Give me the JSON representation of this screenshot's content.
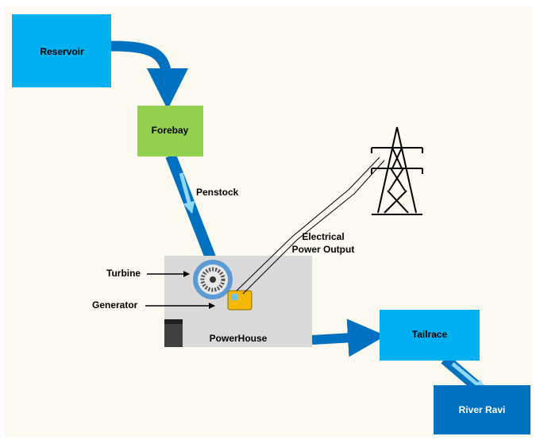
{
  "nodes": [
    {
      "label": "Reservoir"
    },
    {
      "label": "Forebay"
    },
    {
      "label": "PowerHouse"
    },
    {
      "label": "Tailrace"
    },
    {
      "label": "River Ravi"
    }
  ],
  "labels": {
    "penstock": "Penstock",
    "turbine": "Turbine",
    "generator": "Generator",
    "output_line1": "Electrical",
    "output_line2": "Power Output"
  }
}
